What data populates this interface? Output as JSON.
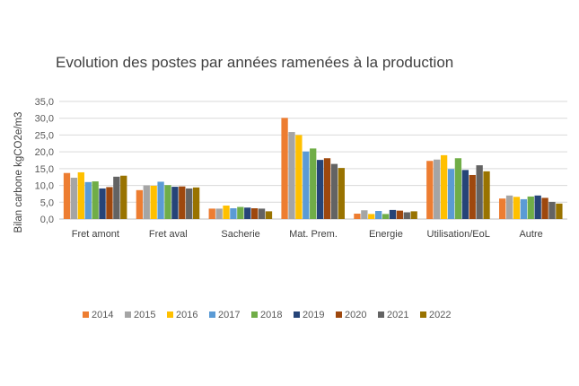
{
  "chart_data": {
    "type": "bar",
    "title": "Evolution des postes par années ramenées à la production",
    "xlabel": "",
    "ylabel": "Bilan carbone kgCO2e/m3",
    "ylim": [
      0,
      35
    ],
    "yticks": [
      "0,0",
      "5,0",
      "10,0",
      "15,0",
      "20,0",
      "25,0",
      "30,0",
      "35,0"
    ],
    "grid": true,
    "legend_position": "bottom",
    "categories": [
      "Fret amont",
      "Fret aval",
      "Sacherie",
      "Mat. Prem.",
      "Energie",
      "Utilisation/EoL",
      "Autre"
    ],
    "series": [
      {
        "name": "2014",
        "color": "#ED7D31",
        "values": [
          13.7,
          8.6,
          3.1,
          30.1,
          1.6,
          17.3,
          6.1
        ]
      },
      {
        "name": "2015",
        "color": "#A5A5A5",
        "values": [
          12.3,
          10.0,
          3.1,
          25.9,
          2.6,
          17.7,
          7.0
        ]
      },
      {
        "name": "2016",
        "color": "#FFC000",
        "values": [
          13.9,
          9.9,
          4.0,
          25.0,
          1.5,
          19.0,
          6.6
        ]
      },
      {
        "name": "2017",
        "color": "#5B9BD5",
        "values": [
          11.0,
          11.1,
          3.2,
          20.1,
          2.4,
          14.9,
          5.9
        ]
      },
      {
        "name": "2018",
        "color": "#70AD47",
        "values": [
          11.2,
          10.1,
          3.6,
          21.0,
          1.5,
          18.1,
          6.7
        ]
      },
      {
        "name": "2019",
        "color": "#264478",
        "values": [
          9.1,
          9.6,
          3.4,
          17.6,
          2.7,
          14.6,
          7.0
        ]
      },
      {
        "name": "2020",
        "color": "#9E480E",
        "values": [
          9.5,
          9.7,
          3.2,
          18.1,
          2.5,
          13.1,
          6.3
        ]
      },
      {
        "name": "2021",
        "color": "#636363",
        "values": [
          12.6,
          9.1,
          3.1,
          16.4,
          2.0,
          16.0,
          5.1
        ]
      },
      {
        "name": "2022",
        "color": "#997300",
        "values": [
          12.9,
          9.4,
          2.3,
          15.2,
          2.3,
          14.2,
          4.6
        ]
      }
    ]
  }
}
